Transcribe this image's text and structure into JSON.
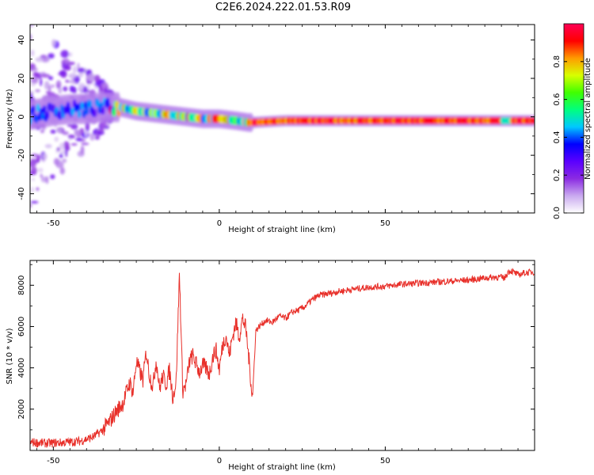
{
  "title": "C2E6.2024.222.01.53.R09",
  "chart_data": [
    {
      "type": "heatmap",
      "title": "C2E6.2024.222.01.53.R09",
      "xlabel": "Height of straight line (km)",
      "ylabel": "Frequency (Hz)",
      "xlim": [
        -57,
        95
      ],
      "ylim": [
        -50,
        48
      ],
      "xticks": [
        -50,
        0,
        50
      ],
      "yticks": [
        40,
        20,
        0,
        -20,
        -40
      ],
      "grid": false,
      "colorbar": {
        "label": "Normalized spectral amplitude",
        "range": [
          0.0,
          1.0
        ],
        "ticks": [
          "0.0",
          "0.2",
          "0.4",
          "0.6",
          "0.8"
        ],
        "colors": [
          "#ffffff",
          "#c9a9ef",
          "#8b2be2",
          "#5a00ff",
          "#0000ff",
          "#00c8ff",
          "#00ff7f",
          "#40ff00",
          "#d8ff00",
          "#ff9b00",
          "#ff0000",
          "#ff0055"
        ]
      },
      "ridge": {
        "x": [
          -57,
          -50,
          -45,
          -40,
          -35,
          -30,
          -25,
          -20,
          -15,
          -10,
          -5,
          0,
          5,
          9,
          20,
          40,
          60,
          80,
          90,
          95
        ],
        "frequency": [
          1,
          3,
          4,
          4,
          5,
          5,
          3,
          2,
          1,
          0,
          -1,
          -1,
          -2,
          -3,
          -2,
          -2,
          -2,
          -2,
          -2,
          -2
        ]
      }
    },
    {
      "type": "line",
      "xlabel": "Height of straight line (km)",
      "ylabel": "SNR (10 * v/v)",
      "xlim": [
        -57,
        95
      ],
      "ylim": [
        0,
        9200
      ],
      "xticks": [
        -50,
        0,
        50
      ],
      "yticks": [
        8000,
        6000,
        4000,
        2000
      ],
      "grid": false,
      "color": "#e8302a",
      "series": [
        {
          "x": [
            -57,
            -52,
            -47,
            -42,
            -38,
            -35,
            -33,
            -31,
            -29,
            -27,
            -26,
            -25,
            -23,
            -22,
            -21,
            -20,
            -19,
            -18,
            -17,
            -16,
            -15,
            -14,
            -13,
            -12,
            -11,
            -10,
            -9,
            -8,
            -7,
            -6,
            -5,
            -4,
            -3,
            -2,
            -1,
            0,
            1,
            2,
            3,
            4,
            5,
            6,
            7,
            8,
            9,
            10,
            11,
            12,
            14,
            16,
            18,
            20,
            22,
            24,
            26,
            28,
            30,
            33,
            36,
            40,
            45,
            50,
            55,
            60,
            65,
            70,
            75,
            80,
            84,
            86,
            87,
            88,
            90,
            92,
            95
          ],
          "y": [
            400,
            350,
            380,
            450,
            650,
            1000,
            1400,
            1900,
            2300,
            3300,
            2800,
            4300,
            3400,
            4800,
            3600,
            3100,
            4400,
            3000,
            3600,
            3200,
            3900,
            2600,
            3300,
            8600,
            2900,
            3200,
            4300,
            4600,
            4200,
            3800,
            4100,
            4000,
            3700,
            4500,
            4900,
            3900,
            5100,
            5600,
            4600,
            5500,
            6200,
            5500,
            6400,
            5900,
            4300,
            2500,
            5800,
            6000,
            6300,
            6200,
            6500,
            6400,
            6700,
            6800,
            7000,
            7300,
            7500,
            7600,
            7700,
            7800,
            7900,
            7950,
            8050,
            8100,
            8150,
            8200,
            8250,
            8350,
            8400,
            8350,
            8650,
            8700,
            8500,
            8600,
            8650
          ]
        }
      ]
    }
  ]
}
